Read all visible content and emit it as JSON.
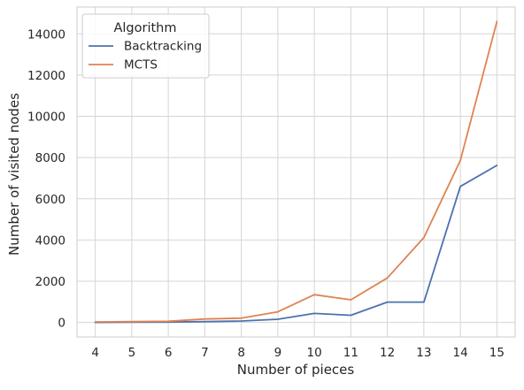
{
  "chart_data": {
    "type": "line",
    "title": "",
    "xlabel": "Number of pieces",
    "ylabel": "Number of visited nodes",
    "x": [
      4,
      5,
      6,
      7,
      8,
      9,
      10,
      11,
      12,
      13,
      14,
      15
    ],
    "xlim": [
      3.5,
      15.5
    ],
    "ylim": [
      -700,
      15300
    ],
    "y_ticks": [
      0,
      2000,
      4000,
      6000,
      8000,
      10000,
      12000,
      14000
    ],
    "grid": true,
    "legend": {
      "title": "Algorithm",
      "placement": "upper-left"
    },
    "series": [
      {
        "name": "Backtracking",
        "color": "#4c72b0",
        "values": [
          5,
          10,
          20,
          40,
          70,
          160,
          440,
          350,
          990,
          990,
          6600,
          7620
        ]
      },
      {
        "name": "MCTS",
        "color": "#dd8452",
        "values": [
          30,
          40,
          60,
          170,
          210,
          520,
          1350,
          1100,
          2160,
          4120,
          7860,
          14600
        ]
      }
    ]
  }
}
